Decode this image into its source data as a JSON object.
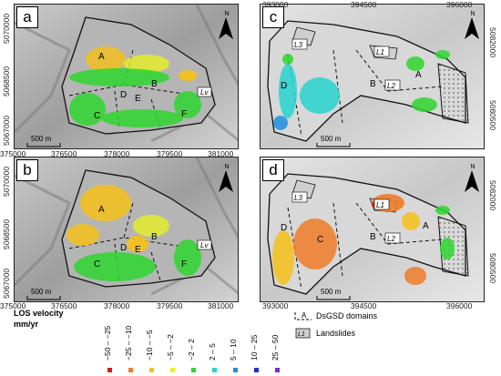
{
  "panels": [
    {
      "label": "a",
      "domains": [
        "A",
        "B",
        "C",
        "D",
        "E",
        "F"
      ],
      "landslide": "Lv"
    },
    {
      "label": "b",
      "domains": [
        "A",
        "B",
        "C",
        "D",
        "E",
        "F"
      ],
      "landslide": "Lv"
    },
    {
      "label": "c",
      "domains": [
        "A",
        "B",
        "D"
      ],
      "landslides": [
        "L1",
        "L2",
        "L3"
      ]
    },
    {
      "label": "d",
      "domains": [
        "A",
        "B",
        "C",
        "D"
      ],
      "landslides": [
        "L1",
        "L2",
        "L3"
      ]
    }
  ],
  "north": "N",
  "scalebar": "500 m",
  "axes_left": {
    "x_ticks": [
      "375000",
      "376500",
      "378000",
      "379500",
      "381000"
    ],
    "y_ticks": [
      "5070000",
      "5068500",
      "5067000"
    ]
  },
  "axes_right": {
    "x_ticks": [
      "393000",
      "394500",
      "396000"
    ],
    "y_ticks": [
      "5082000",
      "5080500"
    ]
  },
  "legend": {
    "title_line1": "LOS velocity",
    "title_line2": "mm/yr",
    "classes": [
      {
        "label": "−50 – −25",
        "color": "#d7191c"
      },
      {
        "label": "−25 – −10",
        "color": "#f07c2a"
      },
      {
        "label": "−10 – −5",
        "color": "#f5c118"
      },
      {
        "label": "−5 – −2",
        "color": "#e6f025"
      },
      {
        "label": "−2 – 2",
        "color": "#2ed62e"
      },
      {
        "label": "2 – 5",
        "color": "#27d4d0"
      },
      {
        "label": "5 – 10",
        "color": "#1e8fe0"
      },
      {
        "label": "10 – 25",
        "color": "#2a2ad8"
      },
      {
        "label": "25 – 50",
        "color": "#7b2ad0"
      }
    ],
    "dsgsd_label": "DsGSD domains",
    "dsgsd_symbol": "A",
    "landslides_label": "Landslides",
    "landslides_symbol": "L1"
  }
}
